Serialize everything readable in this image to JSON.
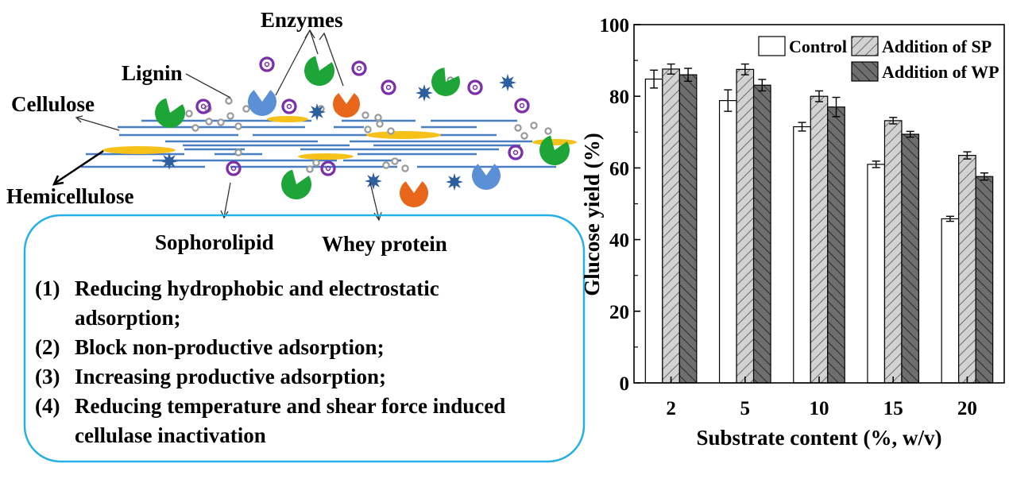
{
  "diagram": {
    "labels": {
      "enzymes": "Enzymes",
      "lignin": "Lignin",
      "cellulose": "Cellulose",
      "hemicellulose": "Hemicellulose",
      "sophorolipid": "Sophorolipid",
      "whey_protein": "Whey protein"
    },
    "mechanisms": [
      {
        "num": "(1)",
        "lines": [
          "Reducing hydrophobic and electrostatic",
          "adsorption;"
        ]
      },
      {
        "num": "(2)",
        "lines": [
          "Block non-productive adsorption;"
        ]
      },
      {
        "num": "(3)",
        "lines": [
          "Increasing productive adsorption;"
        ]
      },
      {
        "num": "(4)",
        "lines": [
          "Reducing temperature and shear force induced",
          "cellulase inactivation"
        ]
      }
    ],
    "colors": {
      "fiber": "#4a7fc1",
      "hemicellulose": "#f6c21a",
      "lignin": "#9a9a9a",
      "enzyme_green": "#1ea538",
      "enzyme_blue": "#5b8fd6",
      "enzyme_orange": "#e8661a",
      "sophorolipid": "#7b2fa8",
      "whey": "#2d5f9e",
      "box_border": "#27b0e6"
    }
  },
  "chart_data": {
    "type": "bar",
    "categories": [
      "2",
      "5",
      "10",
      "15",
      "20"
    ],
    "series": [
      {
        "name": "Control",
        "values": [
          84.8,
          78.8,
          71.5,
          61.0,
          45.8
        ],
        "errors": [
          2.5,
          3.0,
          1.2,
          0.9,
          0.7
        ],
        "fill": "#ffffff",
        "pattern": "none"
      },
      {
        "name": "Addition of SP",
        "values": [
          87.6,
          87.5,
          80.0,
          73.2,
          63.5
        ],
        "errors": [
          1.4,
          1.5,
          1.5,
          0.9,
          1.0
        ],
        "fill": "#d2d2d2",
        "pattern": "hatch-right"
      },
      {
        "name": "Addition of WP",
        "values": [
          86.0,
          83.1,
          77.0,
          69.4,
          57.6
        ],
        "errors": [
          1.8,
          1.6,
          2.7,
          0.8,
          1.0
        ],
        "fill": "#6e6e6e",
        "pattern": "hatch-left"
      }
    ],
    "xlabel": "Substrate content (%, w/v)",
    "ylabel": "Glucose yield (%)",
    "ylim": [
      0,
      100
    ],
    "yticks": [
      "0",
      "20",
      "40",
      "60",
      "80",
      "100"
    ],
    "legend_position": "top-right"
  }
}
